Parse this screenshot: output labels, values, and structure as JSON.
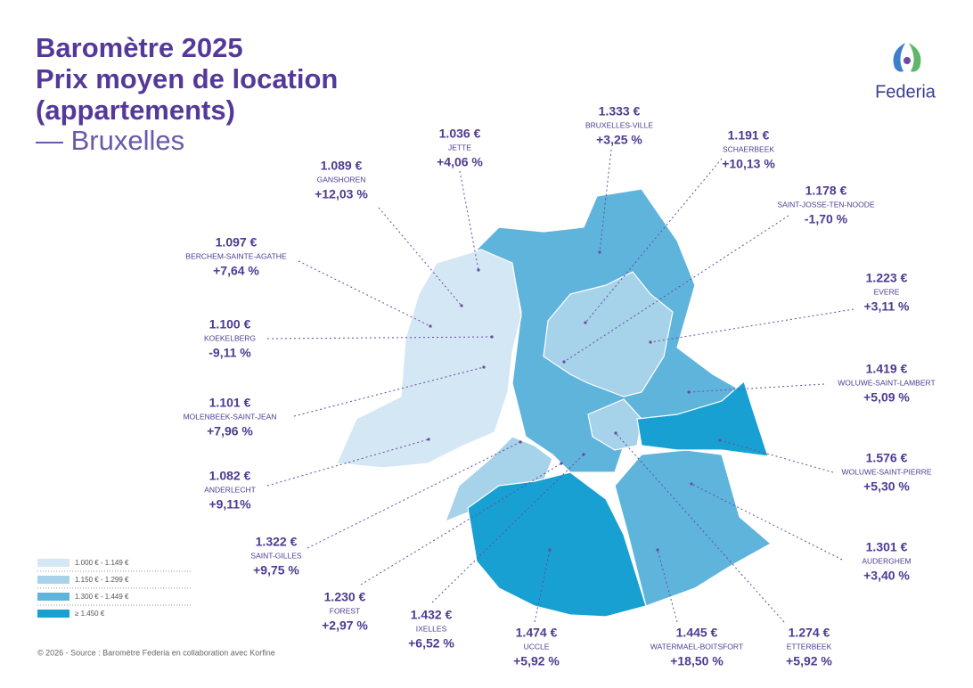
{
  "header": {
    "title_lines": [
      "Baromètre 2025",
      "Prix moyen de location",
      "(appartements)"
    ],
    "subtitle": "— Bruxelles"
  },
  "logo": {
    "text": "Federia"
  },
  "legend": [
    {
      "label": "1.000 € - 1.149 €",
      "color": "#d4e7f4"
    },
    {
      "label": "1.150 € - 1.299 €",
      "color": "#a6d2ea"
    },
    {
      "label": "1.300 € - 1.449 €",
      "color": "#5fb4dc"
    },
    {
      "label": "≥ 1.450 €",
      "color": "#17a0d1"
    }
  ],
  "communes": [
    {
      "name": "GANSHOREN",
      "price": "1.089 €",
      "change": "+12,03 %"
    },
    {
      "name": "JETTE",
      "price": "1.036 €",
      "change": "+4,06 %"
    },
    {
      "name": "BRUXELLES-VILLE",
      "price": "1.333 €",
      "change": "+3,25 %"
    },
    {
      "name": "SCHAERBEEK",
      "price": "1.191 €",
      "change": "+10,13 %"
    },
    {
      "name": "SAINT-JOSSE-TEN-NOODE",
      "price": "1.178 €",
      "change": "-1,70 %"
    },
    {
      "name": "EVERE",
      "price": "1.223 €",
      "change": "+3,11 %"
    },
    {
      "name": "WOLUWE-SAINT-LAMBERT",
      "price": "1.419 €",
      "change": "+5,09 %"
    },
    {
      "name": "WOLUWE-SAINT-PIERRE",
      "price": "1.576 €",
      "change": "+5,30 %"
    },
    {
      "name": "AUDERGHEM",
      "price": "1.301 €",
      "change": "+3,40 %"
    },
    {
      "name": "ETTERBEEK",
      "price": "1.274 €",
      "change": "+5,92 %"
    },
    {
      "name": "WATERMAEL-BOITSFORT",
      "price": "1.445 €",
      "change": "+18,50 %"
    },
    {
      "name": "UCCLE",
      "price": "1.474 €",
      "change": "+5,92 %"
    },
    {
      "name": "IXELLES",
      "price": "1.432 €",
      "change": "+6,52 %"
    },
    {
      "name": "FOREST",
      "price": "1.230 €",
      "change": "+2,97 %"
    },
    {
      "name": "SAINT-GILLES",
      "price": "1.322 €",
      "change": "+9,75 %"
    },
    {
      "name": "ANDERLECHT",
      "price": "1.082 €",
      "change": "+9,11%"
    },
    {
      "name": "MOLENBEEK-SAINT-JEAN",
      "price": "1.101 €",
      "change": "+7,96 %"
    },
    {
      "name": "KOEKELBERG",
      "price": "1.100 €",
      "change": "-9,11 %"
    },
    {
      "name": "BERCHEM-SAINTE-AGATHE",
      "price": "1.097 €",
      "change": "+7,64 %"
    }
  ],
  "footer": {
    "source": "© 2026 - Source : Baromètre Federia en collaboration avec Korfine"
  }
}
